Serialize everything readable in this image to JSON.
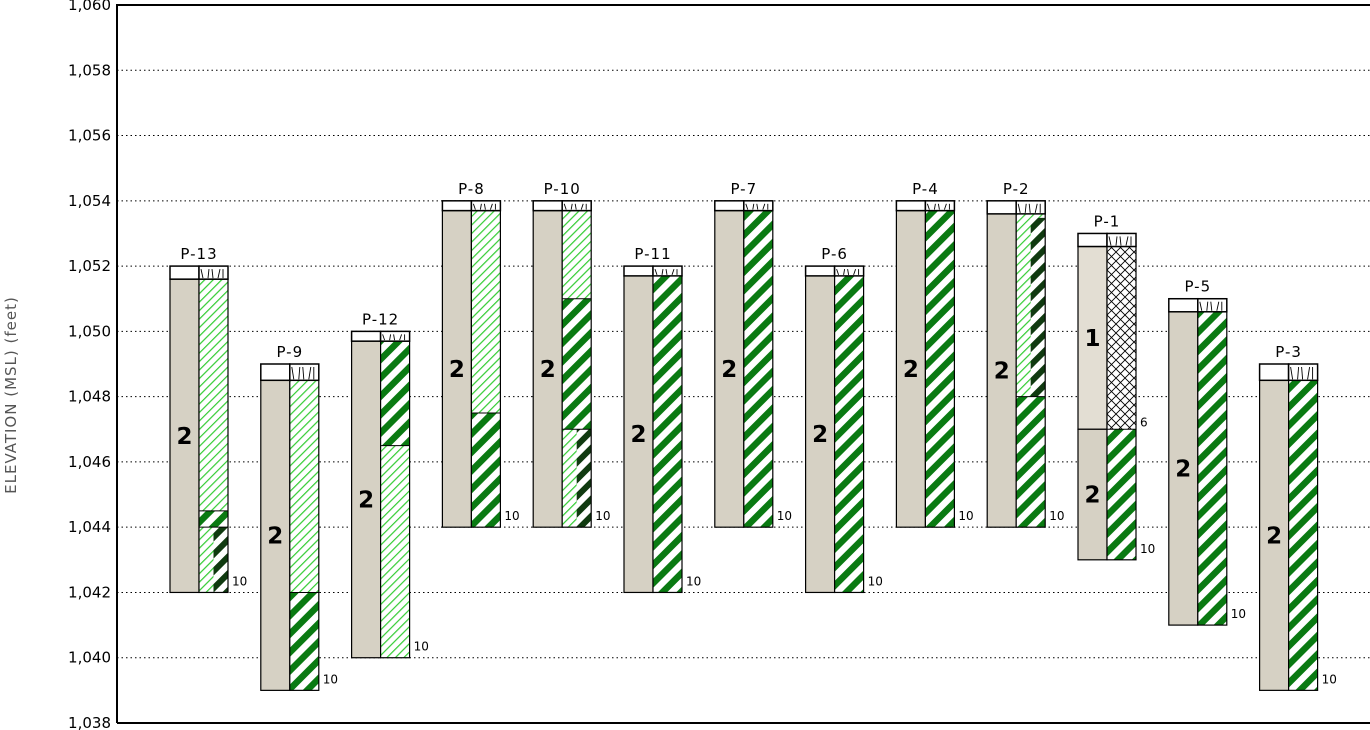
{
  "chart_data": {
    "type": "boring-log-profile",
    "ylabel": "ELEVATION (MSL) (feet)",
    "ylim": [
      1038,
      1060
    ],
    "grid": "dotted horizontal",
    "yticks": [
      "1,038",
      "1,040",
      "1,042",
      "1,044",
      "1,046",
      "1,048",
      "1,050",
      "1,052",
      "1,054",
      "1,056",
      "1,058",
      "1,060"
    ],
    "colors": {
      "unit_2_fill": "#d6d1c4",
      "unit_1_fill": "#e3ded3",
      "moist_dense_hatch": "#0a7a12",
      "moist_light_hatch": "#33cc33",
      "wet_dark_hatch": "#103a10",
      "sample_crosshatch": "#000000"
    },
    "logs": [
      {
        "name": "P-13",
        "top": 1052.0,
        "bottom": 1042.0,
        "units": [
          {
            "label": "2",
            "from": 1051.6,
            "to": 1042.0
          }
        ],
        "moisture": [
          {
            "style": "light",
            "from": 1051.6,
            "to": 1044.5
          },
          {
            "style": "dense",
            "from": 1044.5,
            "to": 1044.0
          },
          {
            "style": "light",
            "from": 1044.0,
            "to": 1042.0,
            "wet": true
          }
        ],
        "depth_label": "10"
      },
      {
        "name": "P-9",
        "top": 1049.0,
        "bottom": 1039.0,
        "units": [
          {
            "label": "2",
            "from": 1048.5,
            "to": 1039.0
          }
        ],
        "moisture": [
          {
            "style": "light",
            "from": 1048.5,
            "to": 1042.0
          },
          {
            "style": "dense",
            "from": 1042.0,
            "to": 1039.0
          }
        ],
        "depth_label": "10"
      },
      {
        "name": "P-12",
        "top": 1050.0,
        "bottom": 1040.0,
        "units": [
          {
            "label": "2",
            "from": 1049.7,
            "to": 1040.0
          }
        ],
        "moisture": [
          {
            "style": "dense",
            "from": 1049.7,
            "to": 1046.5
          },
          {
            "style": "light",
            "from": 1046.5,
            "to": 1040.0
          }
        ],
        "depth_label": "10"
      },
      {
        "name": "P-8",
        "top": 1054.0,
        "bottom": 1044.0,
        "units": [
          {
            "label": "2",
            "from": 1053.7,
            "to": 1044.0
          }
        ],
        "moisture": [
          {
            "style": "light",
            "from": 1053.7,
            "to": 1047.5
          },
          {
            "style": "dense",
            "from": 1047.5,
            "to": 1044.0
          }
        ],
        "depth_label": "10"
      },
      {
        "name": "P-10",
        "top": 1054.0,
        "bottom": 1044.0,
        "units": [
          {
            "label": "2",
            "from": 1053.7,
            "to": 1044.0
          }
        ],
        "moisture": [
          {
            "style": "light",
            "from": 1053.7,
            "to": 1051.0
          },
          {
            "style": "dense",
            "from": 1051.0,
            "to": 1047.0
          },
          {
            "style": "light",
            "from": 1047.0,
            "to": 1044.0,
            "wet": true
          }
        ],
        "depth_label": "10"
      },
      {
        "name": "P-11",
        "top": 1052.0,
        "bottom": 1042.0,
        "units": [
          {
            "label": "2",
            "from": 1051.7,
            "to": 1042.0
          }
        ],
        "moisture": [
          {
            "style": "dense",
            "from": 1051.7,
            "to": 1042.0
          }
        ],
        "depth_label": "10"
      },
      {
        "name": "P-7",
        "top": 1054.0,
        "bottom": 1044.0,
        "units": [
          {
            "label": "2",
            "from": 1053.7,
            "to": 1044.0
          }
        ],
        "moisture": [
          {
            "style": "dense",
            "from": 1053.7,
            "to": 1044.0
          }
        ],
        "depth_label": "10"
      },
      {
        "name": "P-6",
        "top": 1052.0,
        "bottom": 1042.0,
        "units": [
          {
            "label": "2",
            "from": 1051.7,
            "to": 1042.0
          }
        ],
        "moisture": [
          {
            "style": "dense",
            "from": 1051.7,
            "to": 1042.0
          }
        ],
        "depth_label": "10"
      },
      {
        "name": "P-4",
        "top": 1054.0,
        "bottom": 1044.0,
        "units": [
          {
            "label": "2",
            "from": 1053.7,
            "to": 1044.0
          }
        ],
        "moisture": [
          {
            "style": "dense",
            "from": 1053.7,
            "to": 1044.0
          }
        ],
        "depth_label": "10"
      },
      {
        "name": "P-2",
        "top": 1054.0,
        "bottom": 1044.0,
        "units": [
          {
            "label": "2",
            "from": 1053.6,
            "to": 1044.0
          }
        ],
        "moisture": [
          {
            "style": "light",
            "from": 1053.6,
            "to": 1048.0,
            "wet": true
          },
          {
            "style": "dense",
            "from": 1048.0,
            "to": 1044.0
          }
        ],
        "depth_label": "10"
      },
      {
        "name": "P-1",
        "top": 1053.0,
        "bottom": 1043.0,
        "units": [
          {
            "label": "1",
            "from": 1052.6,
            "to": 1047.0,
            "fill": "unit_1_fill"
          },
          {
            "label": "2",
            "from": 1047.0,
            "to": 1043.0
          }
        ],
        "moisture": [
          {
            "style": "cross",
            "from": 1052.6,
            "to": 1047.0
          },
          {
            "style": "dense",
            "from": 1047.0,
            "to": 1043.0
          }
        ],
        "mid_label": "6",
        "depth_label": "10"
      },
      {
        "name": "P-5",
        "top": 1051.0,
        "bottom": 1041.0,
        "units": [
          {
            "label": "2",
            "from": 1050.6,
            "to": 1041.0
          }
        ],
        "moisture": [
          {
            "style": "dense",
            "from": 1050.6,
            "to": 1041.0
          }
        ],
        "depth_label": "10"
      },
      {
        "name": "P-3",
        "top": 1049.0,
        "bottom": 1039.0,
        "units": [
          {
            "label": "2",
            "from": 1048.5,
            "to": 1039.0
          }
        ],
        "moisture": [
          {
            "style": "dense",
            "from": 1048.5,
            "to": 1039.0
          }
        ],
        "depth_label": "10"
      }
    ]
  }
}
